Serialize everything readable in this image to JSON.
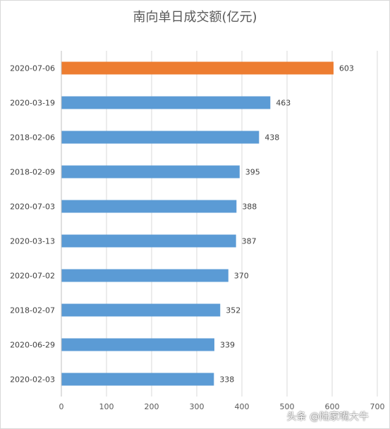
{
  "chart_data": {
    "type": "bar",
    "orientation": "horizontal",
    "title": "南向单日成交额(亿元)",
    "categories": [
      "2020-07-06",
      "2020-03-19",
      "2018-02-06",
      "2018-02-09",
      "2020-07-03",
      "2020-03-13",
      "2020-07-02",
      "2018-02-07",
      "2020-06-29",
      "2020-02-03"
    ],
    "values": [
      603,
      463,
      438,
      395,
      388,
      387,
      370,
      352,
      339,
      338
    ],
    "highlight_index": 0,
    "colors": {
      "highlight": "#ed7d31",
      "default": "#5b9bd5",
      "grid": "#d9d9d9",
      "text": "#404040"
    },
    "xlim": [
      0,
      700
    ],
    "xticks": [
      0,
      100,
      200,
      300,
      400,
      500,
      600,
      700
    ],
    "grid": true,
    "data_labels": true
  },
  "watermark": "头条 @陆家嘴大牛"
}
